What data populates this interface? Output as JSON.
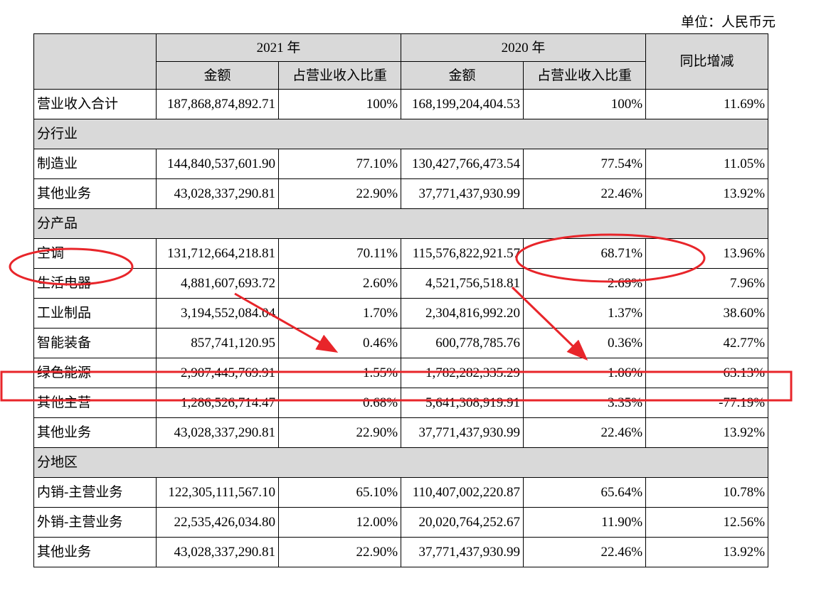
{
  "unit_label": "单位：人民币元",
  "header": {
    "year_2021": "2021 年",
    "year_2020": "2020 年",
    "amount": "金额",
    "ratio": "占营业收入比重",
    "yoy": "同比增减"
  },
  "total": {
    "label": "营业收入合计",
    "a21": "187,868,874,892.71",
    "p21": "100%",
    "a20": "168,199,204,404.53",
    "p20": "100%",
    "yoy": "11.69%"
  },
  "sections": [
    {
      "title": "分行业",
      "rows": [
        {
          "label": "制造业",
          "a21": "144,840,537,601.90",
          "p21": "77.10%",
          "a20": "130,427,766,473.54",
          "p20": "77.54%",
          "yoy": "11.05%"
        },
        {
          "label": "其他业务",
          "a21": "43,028,337,290.81",
          "p21": "22.90%",
          "a20": "37,771,437,930.99",
          "p20": "22.46%",
          "yoy": "13.92%"
        }
      ]
    },
    {
      "title": "分产品",
      "rows": [
        {
          "label": "空调",
          "a21": "131,712,664,218.81",
          "p21": "70.11%",
          "a20": "115,576,822,921.57",
          "p20": "68.71%",
          "yoy": "13.96%"
        },
        {
          "label": "生活电器",
          "a21": "4,881,607,693.72",
          "p21": "2.60%",
          "a20": "4,521,756,518.81",
          "p20": "2.69%",
          "yoy": "7.96%"
        },
        {
          "label": "工业制品",
          "a21": "3,194,552,084.04",
          "p21": "1.70%",
          "a20": "2,304,816,992.20",
          "p20": "1.37%",
          "yoy": "38.60%"
        },
        {
          "label": "智能装备",
          "a21": "857,741,120.95",
          "p21": "0.46%",
          "a20": "600,778,785.76",
          "p20": "0.36%",
          "yoy": "42.77%"
        },
        {
          "label": "绿色能源",
          "a21": "2,907,445,769.91",
          "p21": "1.55%",
          "a20": "1,782,282,335.29",
          "p20": "1.06%",
          "yoy": "63.13%"
        },
        {
          "label": "其他主营",
          "a21": "1,286,526,714.47",
          "p21": "0.68%",
          "a20": "5,641,308,919.91",
          "p20": "3.35%",
          "yoy": "-77.19%"
        },
        {
          "label": "其他业务",
          "a21": "43,028,337,290.81",
          "p21": "22.90%",
          "a20": "37,771,437,930.99",
          "p20": "22.46%",
          "yoy": "13.92%"
        }
      ]
    },
    {
      "title": "分地区",
      "rows": [
        {
          "label": "内销-主营业务",
          "a21": "122,305,111,567.10",
          "p21": "65.10%",
          "a20": "110,407,002,220.87",
          "p20": "65.64%",
          "yoy": "10.78%"
        },
        {
          "label": "外销-主营业务",
          "a21": "22,535,426,034.80",
          "p21": "12.00%",
          "a20": "20,020,764,252.67",
          "p20": "11.90%",
          "yoy": "12.56%"
        },
        {
          "label": "其他业务",
          "a21": "43,028,337,290.81",
          "p21": "22.90%",
          "a20": "37,771,437,930.99",
          "p20": "22.46%",
          "yoy": "13.92%"
        }
      ]
    }
  ],
  "annotation_color": "#e8252a"
}
